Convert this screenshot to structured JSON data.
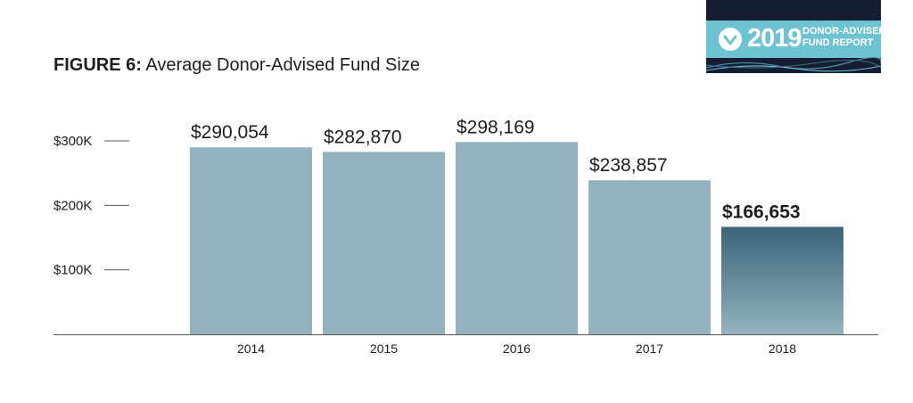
{
  "figure": {
    "label": "FIGURE 6:",
    "title": "Average Donor-Advised Fund Size"
  },
  "logo": {
    "year": "2019",
    "line1": "DONOR-ADVISED",
    "line2": "FUND REPORT",
    "icon": "check-circle-icon"
  },
  "colors": {
    "bar": "#93b3bf",
    "bar_highlight_top": "#3a6478",
    "bar_highlight_bottom": "#93b3bf",
    "axis": "#555555",
    "text": "#1e1e1e"
  },
  "chart_data": {
    "type": "bar",
    "title": "Average Donor-Advised Fund Size",
    "categories": [
      "2014",
      "2015",
      "2016",
      "2017",
      "2018"
    ],
    "values": [
      290054,
      282870,
      298169,
      238857,
      166653
    ],
    "data_labels": [
      "$290,054",
      "$282,870",
      "$298,169",
      "$238,857",
      "$166,653"
    ],
    "highlight_index": 4,
    "yticks": [
      100000,
      200000,
      300000
    ],
    "ytick_labels": [
      "$100K",
      "$200K",
      "$300K"
    ],
    "ylim": [
      0,
      300000
    ],
    "grid": false,
    "xlabel": "",
    "ylabel": ""
  }
}
